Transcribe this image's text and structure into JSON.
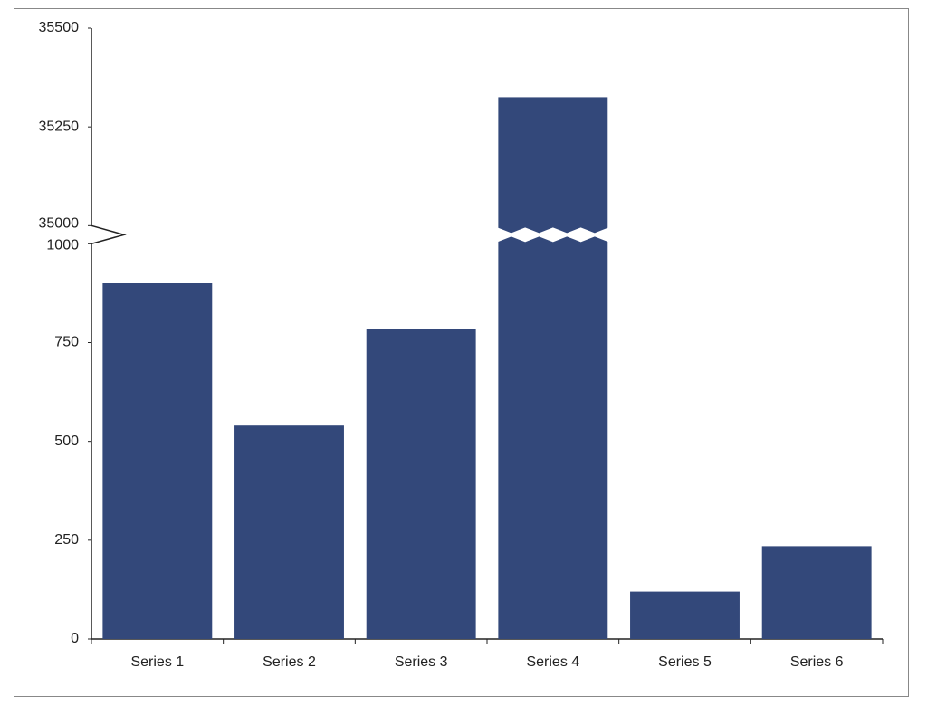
{
  "chart_data": {
    "type": "bar",
    "categories": [
      "Series 1",
      "Series 2",
      "Series 3",
      "Series 4",
      "Series 5",
      "Series 6"
    ],
    "values": [
      900,
      540,
      785,
      35325,
      120,
      235
    ],
    "color": "#33487a",
    "ylim": [
      0,
      35500
    ],
    "yticks": [
      0,
      250,
      500,
      750,
      1000,
      35000,
      35250,
      35500
    ],
    "axis_break": [
      1000,
      35000
    ],
    "grid": false
  }
}
